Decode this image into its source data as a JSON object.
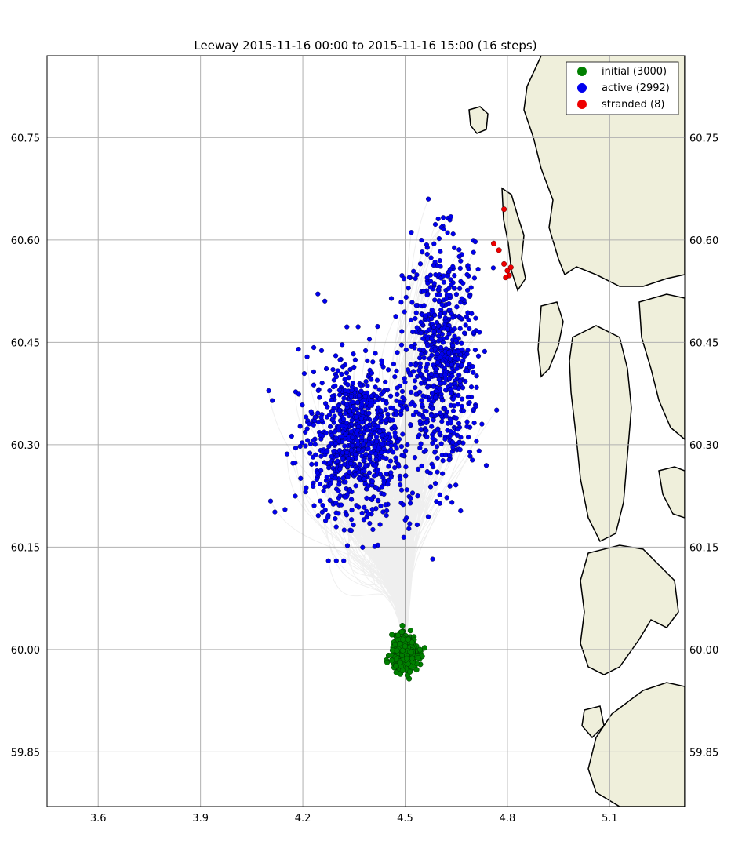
{
  "title": "Leeway  2015-11-16 00:00 to 2015-11-16 15:00 (16 steps)",
  "map": {
    "lon_range": [
      3.45,
      5.32
    ],
    "lat_range": [
      59.77,
      60.87
    ],
    "grid": true,
    "land_color": "#efefdb",
    "coast_color": "#000000",
    "trajectory_color": "#808080",
    "x_ticks": [
      "3.6",
      "3.9",
      "4.2",
      "4.5",
      "4.8",
      "5.1"
    ],
    "x_tick_values": [
      3.6,
      3.9,
      4.2,
      4.5,
      4.8,
      5.1
    ],
    "y_ticks": [
      "60.75",
      "60.60",
      "60.45",
      "60.30",
      "60.15",
      "60.00",
      "59.85"
    ],
    "y_tick_values": [
      60.75,
      60.6,
      60.45,
      60.3,
      60.15,
      60.0,
      59.85
    ]
  },
  "legend": {
    "placement": "top-right",
    "items": [
      {
        "label": "initial (3000)",
        "color": "#008000"
      },
      {
        "label": "active (2992)",
        "color": "#0000ee"
      },
      {
        "label": "stranded (8)",
        "color": "#ee0000"
      }
    ]
  },
  "particles": {
    "initial": {
      "count": 3000,
      "center": [
        4.5,
        59.995
      ],
      "spread": [
        0.035,
        0.022
      ]
    },
    "active": {
      "count": 2992
    },
    "stranded": [
      [
        4.79,
        60.645
      ],
      [
        4.76,
        60.595
      ],
      [
        4.775,
        60.585
      ],
      [
        4.79,
        60.565
      ],
      [
        4.8,
        60.555
      ],
      [
        4.805,
        60.548
      ],
      [
        4.795,
        60.545
      ],
      [
        4.81,
        60.56
      ]
    ]
  }
}
